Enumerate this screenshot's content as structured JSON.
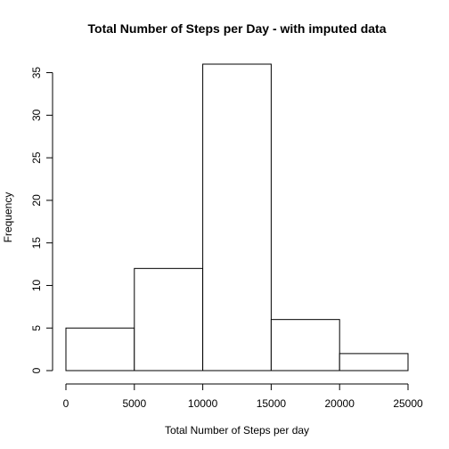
{
  "chart_data": {
    "type": "bar",
    "title": "Total Number of Steps per Day - with imputed data",
    "xlabel": "Total Number of Steps per day",
    "ylabel": "Frequency",
    "bins": [
      {
        "from": 0,
        "to": 5000,
        "count": 5
      },
      {
        "from": 5000,
        "to": 10000,
        "count": 12
      },
      {
        "from": 10000,
        "to": 15000,
        "count": 36
      },
      {
        "from": 15000,
        "to": 20000,
        "count": 6
      },
      {
        "from": 20000,
        "to": 25000,
        "count": 2
      }
    ],
    "xlim": [
      0,
      25000
    ],
    "ylim": [
      0,
      36
    ],
    "x_ticks": [
      0,
      5000,
      10000,
      15000,
      20000,
      25000
    ],
    "y_ticks": [
      0,
      5,
      10,
      15,
      20,
      25,
      30,
      35
    ],
    "grid": false,
    "colors": {
      "bar_fill": "#ffffff",
      "bar_stroke": "#000000"
    }
  }
}
